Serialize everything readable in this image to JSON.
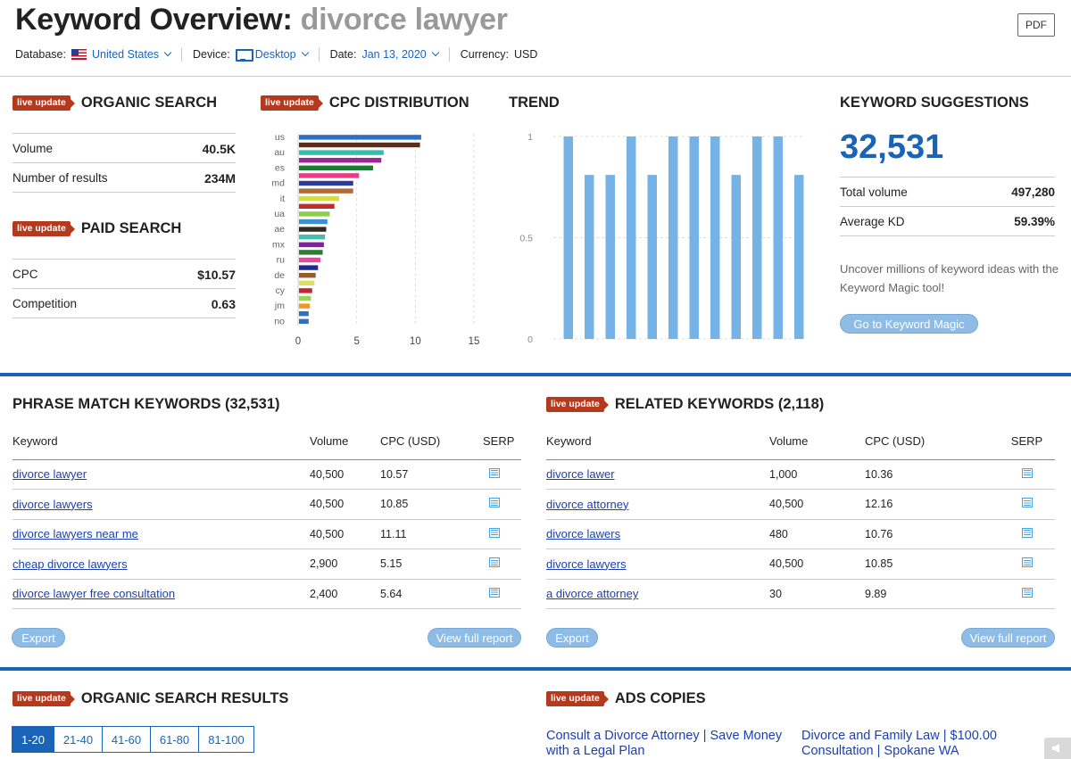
{
  "header": {
    "title_prefix": "Keyword Overview: ",
    "keyword": "divorce lawyer",
    "pdf_label": "PDF"
  },
  "filters": {
    "database_label": "Database:",
    "database_value": "United States",
    "device_label": "Device:",
    "device_value": "Desktop",
    "date_label": "Date:",
    "date_value": "Jan 13, 2020",
    "currency_label": "Currency:",
    "currency_value": "USD"
  },
  "badge_label": "live update",
  "organic": {
    "title": "ORGANIC SEARCH",
    "rows": [
      {
        "label": "Volume",
        "value": "40.5K"
      },
      {
        "label": "Number of results",
        "value": "234M"
      }
    ]
  },
  "paid": {
    "title": "PAID SEARCH",
    "rows": [
      {
        "label": "CPC",
        "value": "$10.57"
      },
      {
        "label": "Competition",
        "value": "0.63"
      }
    ]
  },
  "cpc_distribution": {
    "title": "CPC DISTRIBUTION"
  },
  "trend": {
    "title": "TREND"
  },
  "suggestions": {
    "title": "KEYWORD SUGGESTIONS",
    "count": "32,531",
    "rows": [
      {
        "label": "Total volume",
        "value": "497,280"
      },
      {
        "label": "Average KD",
        "value": "59.39%"
      }
    ],
    "description": "Uncover millions of keyword ideas with the Keyword Magic tool!",
    "button": "Go to Keyword Magic"
  },
  "phrase_match": {
    "title": "PHRASE MATCH KEYWORDS (32,531)",
    "columns": [
      "Keyword",
      "Volume",
      "CPC (USD)",
      "SERP"
    ],
    "rows": [
      {
        "keyword": "divorce lawyer",
        "volume": "40,500",
        "cpc": "10.57"
      },
      {
        "keyword": "divorce lawyers",
        "volume": "40,500",
        "cpc": "10.85"
      },
      {
        "keyword": "divorce lawyers near me",
        "volume": "40,500",
        "cpc": "11.11"
      },
      {
        "keyword": "cheap divorce lawyers",
        "volume": "2,900",
        "cpc": "5.15"
      },
      {
        "keyword": "divorce lawyer free consultation",
        "volume": "2,400",
        "cpc": "5.64"
      }
    ],
    "export_label": "Export",
    "report_label": "View full report"
  },
  "related": {
    "title": "RELATED KEYWORDS (2,118)",
    "columns": [
      "Keyword",
      "Volume",
      "CPC (USD)",
      "SERP"
    ],
    "rows": [
      {
        "keyword": "divorce lawer",
        "volume": "1,000",
        "cpc": "10.36"
      },
      {
        "keyword": "divorce attorney",
        "volume": "40,500",
        "cpc": "12.16"
      },
      {
        "keyword": "divorce lawers",
        "volume": "480",
        "cpc": "10.76"
      },
      {
        "keyword": "divorce lawyers",
        "volume": "40,500",
        "cpc": "10.85"
      },
      {
        "keyword": "a divorce attorney",
        "volume": "30",
        "cpc": "9.89"
      }
    ],
    "export_label": "Export",
    "report_label": "View full report"
  },
  "organic_results": {
    "title": "ORGANIC SEARCH RESULTS",
    "pages": [
      "1-20",
      "21-40",
      "41-60",
      "61-80",
      "81-100"
    ],
    "active_page": "1-20"
  },
  "ads": {
    "title": "ADS COPIES",
    "items": [
      "Consult a Divorce Attorney | Save Money with a Legal Plan",
      "Divorce and Family Law | $100.00 Consultation | Spokane WA"
    ]
  },
  "chart_data": [
    {
      "type": "bar",
      "orientation": "horizontal",
      "categories": [
        "us",
        "",
        "au",
        "",
        "es",
        "",
        "md",
        "",
        "it",
        "",
        "ua",
        "",
        "ae",
        "",
        "mx",
        "",
        "ru",
        "",
        "de",
        "",
        "cy",
        "",
        "jm",
        "",
        "no"
      ],
      "values": [
        10.5,
        10.4,
        7.3,
        7.1,
        6.4,
        5.2,
        4.7,
        4.7,
        3.5,
        3.1,
        2.7,
        2.5,
        2.4,
        2.3,
        2.2,
        2.1,
        1.9,
        1.7,
        1.5,
        1.4,
        1.2,
        1.1,
        1.0,
        0.9,
        0.9
      ],
      "colors": [
        "#2f6fc4",
        "#5a2e1c",
        "#35bfa8",
        "#a0259c",
        "#1f7a33",
        "#e83c84",
        "#2a3b9e",
        "#b36a3a",
        "#d6db4a",
        "#c42b2b",
        "#8fce4a",
        "#3d8fd6",
        "#2e2a24",
        "#43bfb0",
        "#7b2596",
        "#2f7a35",
        "#e8479a",
        "#21288f",
        "#9b5a2c",
        "#dde05c",
        "#c4262e",
        "#9fd25b",
        "#f2961e",
        "#2f6fc4",
        "#2f6fc4"
      ],
      "xlim": [
        0,
        15
      ],
      "xticks": [
        0,
        5,
        10,
        15
      ],
      "grid": true
    },
    {
      "type": "bar",
      "categories": [
        "1",
        "2",
        "3",
        "4",
        "5",
        "6",
        "7",
        "8",
        "9",
        "10",
        "11",
        "12"
      ],
      "values": [
        1,
        0.81,
        0.81,
        1,
        0.81,
        1,
        1,
        1,
        0.81,
        1,
        1,
        0.81
      ],
      "color": "#75b3e6",
      "ylim": [
        0,
        1
      ],
      "yticks": [
        "0",
        "0.5",
        "1"
      ],
      "grid": true
    }
  ]
}
